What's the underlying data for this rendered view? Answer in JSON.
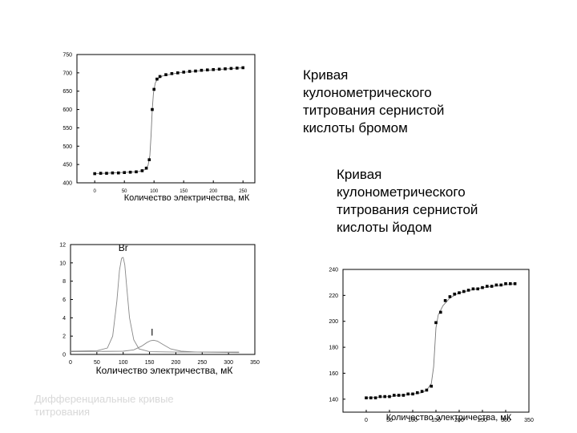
{
  "captions": {
    "bromine": "Кривая\nкулонометрического\nтитрования сернистой\nкислоты бромом",
    "iodine": "Кривая\nкулонометрического\nтитрования сернистой\nкислоты йодом",
    "differential": "Дифференциальные кривые\nтитрования"
  },
  "chart_data": [
    {
      "type": "scatter",
      "title": "",
      "xlabel": "Количество электричества, мК",
      "ylabel": "",
      "xlim": [
        -30,
        270
      ],
      "ylim": [
        400,
        750
      ],
      "xticks": [
        0,
        50,
        100,
        150,
        200,
        250
      ],
      "yticks": [
        400,
        450,
        500,
        550,
        600,
        650,
        700,
        750
      ],
      "ytick_labels": [
        "400",
        "450",
        "500",
        "550",
        "600",
        "650",
        "700",
        "750"
      ],
      "points": [
        [
          0,
          425
        ],
        [
          10,
          426
        ],
        [
          20,
          426
        ],
        [
          30,
          427
        ],
        [
          40,
          427
        ],
        [
          50,
          428
        ],
        [
          60,
          429
        ],
        [
          70,
          430
        ],
        [
          80,
          433
        ],
        [
          87,
          440
        ],
        [
          92,
          463
        ],
        [
          97,
          600
        ],
        [
          100,
          655
        ],
        [
          105,
          683
        ],
        [
          110,
          690
        ],
        [
          120,
          695
        ],
        [
          130,
          698
        ],
        [
          140,
          700
        ],
        [
          150,
          702
        ],
        [
          160,
          704
        ],
        [
          170,
          705
        ],
        [
          180,
          707
        ],
        [
          190,
          708
        ],
        [
          200,
          709
        ],
        [
          210,
          710
        ],
        [
          220,
          711
        ],
        [
          230,
          712
        ],
        [
          240,
          713
        ],
        [
          250,
          714
        ]
      ],
      "curve": [
        [
          0,
          425
        ],
        [
          30,
          427
        ],
        [
          60,
          429
        ],
        [
          75,
          431
        ],
        [
          85,
          436
        ],
        [
          90,
          448
        ],
        [
          93,
          475
        ],
        [
          95,
          530
        ],
        [
          97,
          600
        ],
        [
          99,
          645
        ],
        [
          102,
          672
        ],
        [
          106,
          684
        ],
        [
          115,
          692
        ],
        [
          140,
          700
        ],
        [
          180,
          706
        ],
        [
          250,
          714
        ]
      ]
    },
    {
      "type": "line",
      "title": "",
      "xlabel": "Количество электричества, мК",
      "ylabel": "",
      "xlim": [
        0,
        350
      ],
      "ylim": [
        0,
        12
      ],
      "xticks": [
        0,
        50,
        100,
        150,
        200,
        250,
        300,
        350
      ],
      "yticks": [
        0,
        2,
        4,
        6,
        8,
        10,
        12
      ],
      "series": [
        {
          "name": "Br",
          "x": [
            0,
            50,
            70,
            80,
            88,
            93,
            97,
            100,
            103,
            107,
            112,
            120,
            130,
            150,
            200,
            320
          ],
          "y": [
            0.35,
            0.4,
            0.7,
            2.0,
            5.8,
            9.2,
            10.5,
            10.6,
            9.8,
            7.2,
            4.0,
            1.6,
            0.6,
            0.3,
            0.25,
            0.25
          ]
        },
        {
          "name": "I",
          "x": [
            0,
            100,
            120,
            135,
            145,
            152,
            158,
            165,
            175,
            190,
            210,
            240,
            320
          ],
          "y": [
            0.3,
            0.35,
            0.5,
            0.9,
            1.3,
            1.5,
            1.55,
            1.45,
            1.1,
            0.6,
            0.35,
            0.25,
            0.2
          ]
        }
      ]
    },
    {
      "type": "scatter",
      "title": "",
      "xlabel": "Количество электричества, мК",
      "ylabel": "",
      "xlim": [
        -50,
        350
      ],
      "ylim": [
        130,
        240
      ],
      "xticks": [
        0,
        50,
        100,
        150,
        200,
        250,
        300,
        350
      ],
      "yticks": [
        140,
        160,
        180,
        200,
        220,
        240
      ],
      "points": [
        [
          0,
          141
        ],
        [
          10,
          141
        ],
        [
          20,
          141
        ],
        [
          30,
          142
        ],
        [
          40,
          142
        ],
        [
          50,
          142
        ],
        [
          60,
          143
        ],
        [
          70,
          143
        ],
        [
          80,
          143
        ],
        [
          90,
          144
        ],
        [
          100,
          144
        ],
        [
          110,
          145
        ],
        [
          120,
          146
        ],
        [
          130,
          147
        ],
        [
          140,
          150
        ],
        [
          150,
          199
        ],
        [
          160,
          207
        ],
        [
          170,
          216
        ],
        [
          180,
          219
        ],
        [
          190,
          221
        ],
        [
          200,
          222
        ],
        [
          210,
          223
        ],
        [
          220,
          224
        ],
        [
          230,
          225
        ],
        [
          240,
          225
        ],
        [
          250,
          226
        ],
        [
          260,
          227
        ],
        [
          270,
          227
        ],
        [
          280,
          228
        ],
        [
          290,
          228
        ],
        [
          300,
          229
        ],
        [
          310,
          229
        ],
        [
          320,
          229
        ]
      ],
      "curve": [
        [
          0,
          141
        ],
        [
          50,
          142
        ],
        [
          100,
          144
        ],
        [
          120,
          145
        ],
        [
          130,
          147
        ],
        [
          140,
          152
        ],
        [
          145,
          165
        ],
        [
          150,
          195
        ],
        [
          155,
          205
        ],
        [
          165,
          212
        ],
        [
          180,
          218
        ],
        [
          200,
          222
        ],
        [
          250,
          226
        ],
        [
          320,
          229
        ]
      ]
    }
  ]
}
